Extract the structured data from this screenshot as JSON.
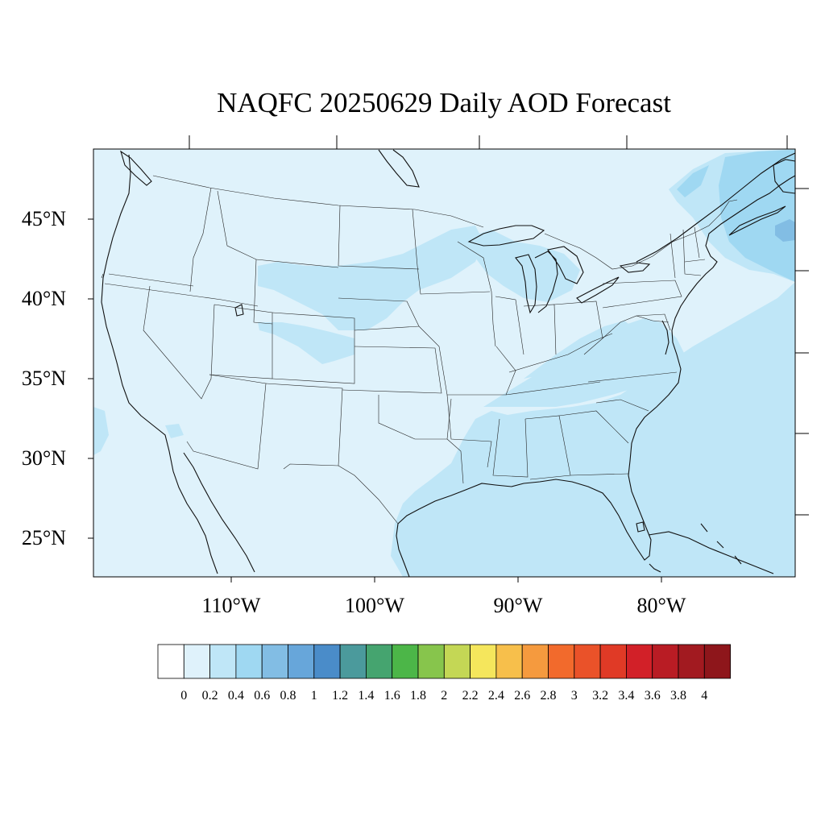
{
  "title": "NAQFC 20250629 Daily AOD Forecast",
  "map": {
    "lat_labels": [
      "45°N",
      "40°N",
      "35°N",
      "30°N",
      "25°N"
    ],
    "lon_labels": [
      "110°W",
      "100°W",
      "90°W",
      "80°W"
    ]
  },
  "colorbar": {
    "labels": [
      "0",
      "0.2",
      "0.4",
      "0.6",
      "0.8",
      "1",
      "1.2",
      "1.4",
      "1.6",
      "1.8",
      "2",
      "2.2",
      "2.4",
      "2.6",
      "2.8",
      "3",
      "3.2",
      "3.4",
      "3.6",
      "3.8",
      "4"
    ],
    "colors": [
      "#ffffff",
      "#dff2fb",
      "#bfe6f7",
      "#9fd8f2",
      "#82bde4",
      "#67a6da",
      "#4a8cc9",
      "#4b9a9c",
      "#45a46f",
      "#4cb648",
      "#87c54c",
      "#c4d755",
      "#f5e65c",
      "#f7bf4b",
      "#f59a3e",
      "#f26a2c",
      "#ea5229",
      "#e03a26",
      "#d22028",
      "#b91c24",
      "#a21a20",
      "#8e161b"
    ]
  },
  "colors": {
    "aod_0_0.2": "#dff2fb",
    "aod_0.2_0.4": "#bfe6f7",
    "aod_0.4_0.6": "#9fd8f2",
    "aod_0.6_0.8": "#82bde4"
  }
}
